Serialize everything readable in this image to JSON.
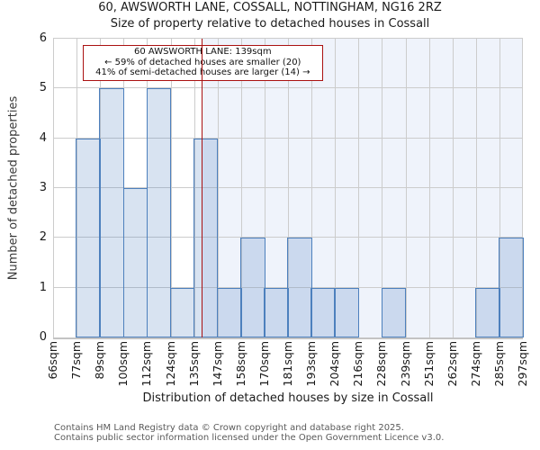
{
  "annotation": {
    "line1": "60 AWSWORTH LANE: 139sqm",
    "line2": "← 59% of detached houses are smaller (20)",
    "line3": "41% of semi-detached houses are larger (14) →"
  },
  "footer": {
    "line1": "Contains HM Land Registry data © Crown copyright and database right 2025.",
    "line2": "Contains public sector information licensed under the Open Government Licence v3.0."
  },
  "chart_data": {
    "type": "bar",
    "title": "60, AWSWORTH LANE, COSSALL, NOTTINGHAM, NG16 2RZ",
    "subtitle": "Size of property relative to detached houses in Cossall",
    "xlabel": "Distribution of detached houses by size in Cossall",
    "ylabel": "Number of detached properties",
    "categories": [
      "66sqm",
      "77sqm",
      "89sqm",
      "100sqm",
      "112sqm",
      "124sqm",
      "135sqm",
      "147sqm",
      "158sqm",
      "170sqm",
      "181sqm",
      "193sqm",
      "204sqm",
      "216sqm",
      "228sqm",
      "239sqm",
      "251sqm",
      "262sqm",
      "274sqm",
      "285sqm",
      "297sqm"
    ],
    "bin_edges_sqm": [
      66,
      77,
      89,
      100,
      112,
      124,
      135,
      147,
      158,
      170,
      181,
      193,
      204,
      216,
      228,
      239,
      251,
      262,
      274,
      285,
      297
    ],
    "values": [
      0,
      4,
      5,
      3,
      5,
      1,
      4,
      1,
      2,
      1,
      2,
      1,
      1,
      0,
      1,
      0,
      0,
      0,
      1,
      2
    ],
    "ylim": [
      0,
      6
    ],
    "yticks": [
      0,
      1,
      2,
      3,
      4,
      5,
      6
    ],
    "grid": true,
    "legend": "none",
    "marker_value_sqm": 139,
    "marker_color": "#aa1111",
    "bar_border_color": "#4d80bd",
    "bar_fill_color": "#d9e2f3",
    "shaded_region_color": "#eff3fb",
    "gridline_color": "#cccccc"
  }
}
